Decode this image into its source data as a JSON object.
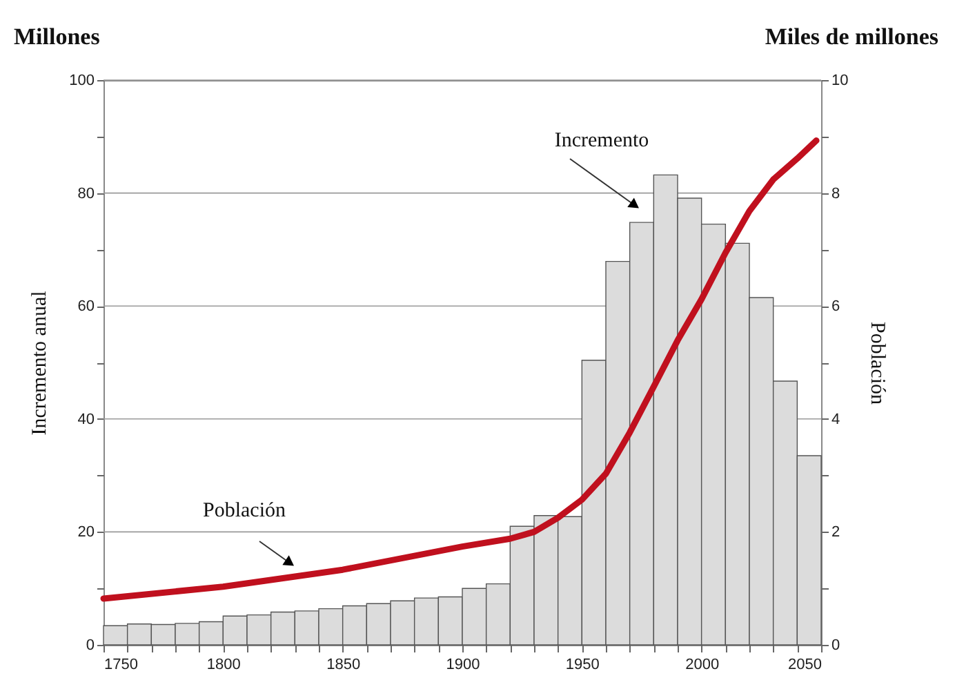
{
  "chart_data": {
    "type": "histogram",
    "ylabel": "Incremento anual",
    "y2label": "Población",
    "annotations": [
      "Millones",
      "Miles de millones"
    ],
    "series": [
      {
        "name": "Incremento",
        "color": "#dcdcdc",
        "bins": [
          1750,
          1760,
          1770,
          1780,
          1790,
          1800,
          1810,
          1820,
          1830,
          1840,
          1850,
          1860,
          1870,
          1880,
          1890,
          1900,
          1910,
          1920,
          1930,
          1940,
          1950,
          1960,
          1970,
          1980,
          1990,
          2000,
          2010,
          2020,
          2030,
          2040,
          2050
        ],
        "values": [
          3.4,
          3.7,
          3.6,
          3.8,
          4.1,
          5.1,
          5.3,
          5.8,
          6.0,
          6.4,
          6.9,
          7.3,
          7.8,
          8.3,
          8.5,
          10.0,
          10.8,
          21.0,
          22.9,
          22.7,
          50.4,
          67.9,
          74.8,
          83.2,
          79.1,
          74.5,
          71.1,
          61.5,
          46.7,
          33.5
        ]
      },
      {
        "name": "Población",
        "type": "line",
        "axis": "y2",
        "color": "#c0101e",
        "x": [
          1750,
          1800,
          1850,
          1900,
          1920,
          1930,
          1940,
          1950,
          1960,
          1970,
          1980,
          1990,
          2000,
          2010,
          2020,
          2030,
          2040,
          2048
        ],
        "values": [
          0.82,
          1.03,
          1.33,
          1.74,
          1.88,
          2.0,
          2.25,
          2.57,
          3.03,
          3.76,
          4.57,
          5.39,
          6.12,
          6.94,
          7.68,
          8.24,
          8.61,
          8.93
        ]
      }
    ],
    "xlim": [
      1750,
      2050
    ],
    "xticks": [
      1750,
      {
        "value": 1760,
        "label": null
      },
      {
        "value": 1770,
        "label": null
      },
      {
        "value": 1780,
        "label": null
      },
      {
        "value": 1790,
        "label": null
      },
      1800,
      {
        "value": 1810,
        "label": null
      },
      {
        "value": 1820,
        "label": null
      },
      {
        "value": 1830,
        "label": null
      },
      {
        "value": 1840,
        "label": null
      },
      1850,
      {
        "value": 1860,
        "label": null
      },
      {
        "value": 1870,
        "label": null
      },
      {
        "value": 1880,
        "label": null
      },
      {
        "value": 1890,
        "label": null
      },
      1900,
      {
        "value": 1910,
        "label": null
      },
      {
        "value": 1920,
        "label": null
      },
      {
        "value": 1930,
        "label": null
      },
      {
        "value": 1940,
        "label": null
      },
      1950,
      {
        "value": 1960,
        "label": null
      },
      {
        "value": 1970,
        "label": null
      },
      {
        "value": 1980,
        "label": null
      },
      {
        "value": 1990,
        "label": null
      },
      2000,
      {
        "value": 2010,
        "label": null
      },
      {
        "value": 2020,
        "label": null
      },
      {
        "value": 2030,
        "label": null
      },
      {
        "value": 2040,
        "label": null
      },
      2050
    ],
    "ylim": [
      0,
      100
    ],
    "yticks": [
      0,
      {
        "value": 10,
        "label": null
      },
      20,
      {
        "value": 30,
        "label": null
      },
      40,
      {
        "value": 50,
        "label": null
      },
      60,
      {
        "value": 70,
        "label": null
      },
      80,
      {
        "value": 90,
        "label": null
      },
      100
    ],
    "y2lim": [
      0,
      10
    ],
    "y2ticks": [
      0,
      {
        "value": 1,
        "label": null
      },
      2,
      {
        "value": 3,
        "label": null
      },
      4,
      {
        "value": 5,
        "label": null
      },
      6,
      {
        "value": 7,
        "label": null
      },
      8,
      {
        "value": 9,
        "label": null
      },
      10
    ],
    "grid": "y",
    "line_style": "solid",
    "marker": "none"
  }
}
